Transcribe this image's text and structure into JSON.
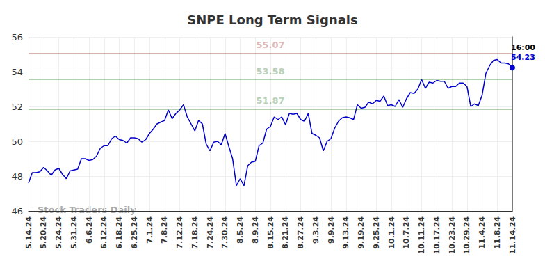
{
  "chart_data": {
    "type": "line",
    "title": "SNPE Long Term Signals",
    "categories": [
      "5.14.24",
      null,
      null,
      null,
      "5.20.24",
      null,
      null,
      null,
      "5.24.24",
      null,
      null,
      null,
      "5.31.24",
      null,
      null,
      null,
      "6.6.24",
      null,
      null,
      null,
      "6.12.24",
      null,
      null,
      null,
      "6.18.24",
      null,
      null,
      null,
      "6.25.24",
      null,
      null,
      null,
      "7.1.24",
      null,
      null,
      null,
      "7.8.24",
      null,
      null,
      null,
      "7.12.24",
      null,
      null,
      null,
      "7.18.24",
      null,
      null,
      null,
      "7.24.24",
      null,
      null,
      null,
      "7.30.24",
      null,
      null,
      null,
      "8.5.24",
      null,
      null,
      null,
      "8.9.24",
      null,
      null,
      null,
      "8.15.24",
      null,
      null,
      null,
      "8.21.24",
      null,
      null,
      null,
      "8.27.24",
      null,
      null,
      null,
      "9.3.24",
      null,
      null,
      null,
      "9.9.24",
      null,
      null,
      null,
      "9.13.24",
      null,
      null,
      null,
      "9.19.24",
      null,
      null,
      null,
      "9.25.24",
      null,
      null,
      null,
      "10.1.24",
      null,
      null,
      null,
      "10.7.24",
      null,
      null,
      null,
      "10.11.24",
      null,
      null,
      null,
      "10.17.24",
      null,
      null,
      null,
      "10.23.24",
      null,
      null,
      null,
      "10.29.24",
      null,
      null,
      null,
      "11.4.24",
      null,
      null,
      null,
      "11.8.24",
      null,
      null,
      null,
      "11.14.24"
    ],
    "values": [
      47.6,
      48.2,
      48.2,
      48.25,
      48.5,
      48.3,
      48.05,
      48.35,
      48.45,
      48.1,
      47.85,
      48.3,
      48.35,
      48.4,
      49.0,
      49.0,
      48.9,
      48.95,
      49.15,
      49.6,
      49.75,
      49.75,
      50.15,
      50.3,
      50.1,
      50.05,
      49.9,
      50.2,
      50.2,
      50.15,
      49.95,
      50.1,
      50.45,
      50.7,
      51.0,
      51.1,
      51.2,
      51.8,
      51.3,
      51.6,
      51.8,
      52.1,
      51.4,
      51.0,
      50.6,
      51.2,
      51.0,
      49.85,
      49.45,
      49.95,
      50.0,
      49.8,
      50.45,
      49.7,
      49.0,
      47.45,
      47.85,
      47.45,
      48.6,
      48.8,
      48.85,
      49.75,
      49.9,
      50.7,
      50.85,
      51.4,
      51.25,
      51.4,
      50.95,
      51.6,
      51.55,
      51.6,
      51.25,
      51.15,
      51.6,
      50.45,
      50.35,
      50.2,
      49.45,
      50.0,
      50.15,
      50.75,
      51.15,
      51.35,
      51.4,
      51.35,
      51.25,
      52.1,
      51.9,
      51.95,
      52.25,
      52.15,
      52.35,
      52.3,
      52.6,
      52.05,
      52.1,
      52.0,
      52.4,
      51.95,
      52.45,
      52.8,
      52.75,
      53.0,
      53.55,
      53.05,
      53.4,
      53.35,
      53.5,
      53.45,
      53.45,
      53.05,
      53.15,
      53.15,
      53.35,
      53.35,
      53.15,
      52.0,
      52.15,
      52.05,
      52.65,
      53.9,
      54.35,
      54.65,
      54.7,
      54.5,
      54.5,
      54.45,
      54.23
    ],
    "color": "#0000cc",
    "ylim": [
      46,
      56
    ],
    "yticks": [
      46,
      48,
      50,
      52,
      54,
      56
    ],
    "grid": true,
    "levels": [
      {
        "value": 55.07,
        "label": "55.07",
        "color": "#8b0000"
      },
      {
        "value": 53.58,
        "label": "53.58",
        "color": "#006400"
      },
      {
        "value": 51.87,
        "label": "51.87",
        "color": "#006400"
      }
    ],
    "end_label": "16:00",
    "watermark": "Stock Traders Daily"
  }
}
